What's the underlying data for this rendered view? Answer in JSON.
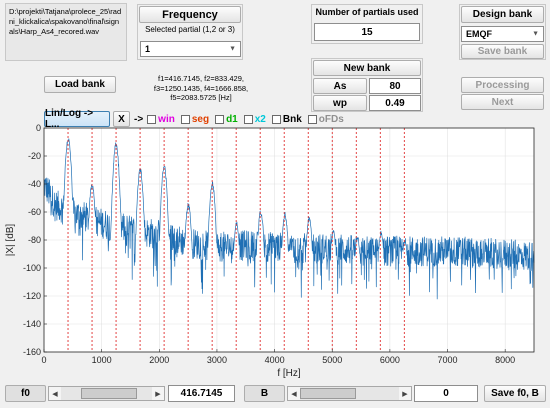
{
  "file_path": "D:\\projekti\\Tatjana\\prolece_25\\radni_klickalica\\spakovano\\final\\signals\\Harp_As4_recored.wav",
  "frequency": {
    "title": "Frequency",
    "subtitle": "Selected partial (1,2 or 3)",
    "selected": "1"
  },
  "partials": {
    "title": "Number of partials used",
    "value": "15"
  },
  "design_bank": {
    "title": "Design bank",
    "method": "EMQF",
    "save_label": "Save bank"
  },
  "load_bank_label": "Load bank",
  "freq_info": {
    "line1": "f1=416.7145, f2=833.429,",
    "line2": "f3=1250.1435, f4=1666.858,",
    "line3": "f5=2083.5725 [Hz]"
  },
  "new_bank": {
    "title": "New bank",
    "as_label": "As",
    "as_value": "80",
    "wp_label": "wp",
    "wp_value": "0.49"
  },
  "processing_label": "Processing",
  "next_label": "Next",
  "toolbar": {
    "scale_button": "Lin/Log -> L...",
    "x_button": "X",
    "arrow": "->",
    "checks": [
      {
        "label": "win",
        "color": "#e000e0"
      },
      {
        "label": "seg",
        "color": "#e04000"
      },
      {
        "label": "d1",
        "color": "#00b000"
      },
      {
        "label": "x2",
        "color": "#00c8d8"
      },
      {
        "label": "Bnk",
        "color": "#000000"
      },
      {
        "label": "oFDs",
        "color": "#909090"
      }
    ]
  },
  "chart_data": {
    "type": "line",
    "xlabel": "f [Hz]",
    "ylabel": "|X| [dB]",
    "xlim": [
      0,
      8500
    ],
    "ylim": [
      -160,
      0
    ],
    "xticks": [
      "0",
      "1000",
      "2000",
      "3000",
      "4000",
      "5000",
      "6000",
      "7000",
      "8000"
    ],
    "yticks": [
      "0",
      "-20",
      "-40",
      "-60",
      "-80",
      "-100",
      "-120",
      "-140",
      "-160"
    ],
    "grid": true,
    "series_color": "#1f6fb4",
    "partial_lines_color": "#e03030",
    "partial_lines": [
      416.7,
      833.4,
      1250.1,
      1666.9,
      2083.6,
      2500.3,
      2917.0,
      3333.7,
      3750.4,
      4167.1,
      4583.9,
      5000.6,
      5417.3,
      5834.0,
      6250.7
    ],
    "peaks": [
      {
        "f": 420,
        "db": -8
      },
      {
        "f": 835,
        "db": -40
      },
      {
        "f": 1250,
        "db": -12
      },
      {
        "f": 1670,
        "db": -30
      },
      {
        "f": 2085,
        "db": -28
      },
      {
        "f": 2505,
        "db": -55
      },
      {
        "f": 2920,
        "db": -40
      },
      {
        "f": 3340,
        "db": -68
      },
      {
        "f": 3760,
        "db": -60
      },
      {
        "f": 4180,
        "db": -62
      },
      {
        "f": 4600,
        "db": -65
      },
      {
        "f": 5020,
        "db": -74
      },
      {
        "f": 5440,
        "db": -78
      },
      {
        "f": 5850,
        "db": -75
      },
      {
        "f": 6260,
        "db": -80
      }
    ],
    "envelope": [
      {
        "f": 0,
        "db": -40
      },
      {
        "f": 200,
        "db": -55
      },
      {
        "f": 600,
        "db": -62
      },
      {
        "f": 1000,
        "db": -68
      },
      {
        "f": 1500,
        "db": -73
      },
      {
        "f": 2000,
        "db": -76
      },
      {
        "f": 2500,
        "db": -82
      },
      {
        "f": 3000,
        "db": -85
      },
      {
        "f": 3500,
        "db": -84
      },
      {
        "f": 4000,
        "db": -85
      },
      {
        "f": 4500,
        "db": -86
      },
      {
        "f": 5000,
        "db": -86
      },
      {
        "f": 5500,
        "db": -88
      },
      {
        "f": 6000,
        "db": -88
      },
      {
        "f": 6500,
        "db": -88
      },
      {
        "f": 7000,
        "db": -88
      },
      {
        "f": 7500,
        "db": -89
      },
      {
        "f": 8000,
        "db": -90
      },
      {
        "f": 8500,
        "db": -92
      }
    ]
  },
  "f0": {
    "label": "f0",
    "value": "416.7145",
    "slider_fraction": 0.58
  },
  "b": {
    "label": "B",
    "value": "0",
    "slider_fraction": 0.0
  },
  "save_f0_label": "Save f0, B",
  "icons": {
    "dropdown": "chevron-down-icon",
    "slider_left": "triangle-left-icon",
    "slider_right": "triangle-right-icon"
  }
}
